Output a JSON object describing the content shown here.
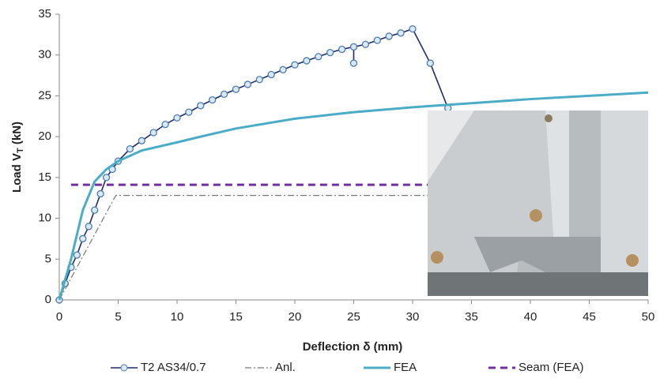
{
  "chart_data": {
    "type": "line",
    "xlabel": "Deflection δ (mm)",
    "ylabel": [
      "Load V",
      "T",
      " (kN)"
    ],
    "xlim": [
      0,
      50
    ],
    "xticks": [
      0,
      5,
      10,
      15,
      20,
      25,
      30,
      35,
      40,
      45,
      50
    ],
    "ylim": [
      0,
      35
    ],
    "yticks": [
      0,
      5,
      10,
      15,
      20,
      25,
      30,
      35
    ],
    "grid": false,
    "legend": "bottom",
    "series": [
      {
        "name": "T2 AS34/0.7",
        "color": "#1f2a6e",
        "style": "solid",
        "marker": "circle",
        "x": [
          0,
          0.5,
          1,
          1.5,
          2,
          2.5,
          3,
          3.5,
          4,
          4.5,
          5,
          6,
          7,
          8,
          9,
          10,
          11,
          12,
          13,
          14,
          15,
          16,
          17,
          18,
          19,
          20,
          21,
          22,
          23,
          24,
          25,
          25,
          25,
          26,
          27,
          28,
          29,
          30,
          31.5,
          33
        ],
        "values": [
          0,
          2,
          4,
          5.5,
          7.5,
          9,
          11,
          13,
          15,
          16,
          17,
          18.5,
          19.5,
          20.5,
          21.5,
          22.3,
          23,
          23.8,
          24.5,
          25.2,
          25.8,
          26.4,
          27,
          27.6,
          28.2,
          28.8,
          29.3,
          29.8,
          30.3,
          30.7,
          31,
          29,
          31,
          31.3,
          31.8,
          32.3,
          32.7,
          33.2,
          29,
          23.5
        ]
      },
      {
        "name": "Anl.",
        "color": "#777777",
        "style": "dash-dot",
        "marker": "none",
        "x": [
          0,
          4.8,
          31.5
        ],
        "values": [
          0,
          12.8,
          12.8
        ]
      },
      {
        "name": "FEA",
        "color": "#4bacc6",
        "style": "solid-thick",
        "marker": "none",
        "x": [
          0,
          1,
          2,
          3,
          4,
          5,
          7,
          10,
          12,
          15,
          20,
          25,
          30,
          35,
          40,
          45,
          50
        ],
        "values": [
          0,
          5,
          11,
          14.5,
          16,
          17,
          18.3,
          19.3,
          20,
          21,
          22.2,
          23,
          23.6,
          24.1,
          24.6,
          25,
          25.4
        ]
      },
      {
        "name": "Seam (FEA)",
        "color": "#7030a0",
        "style": "dashed",
        "marker": "none",
        "x": [
          1,
          31.5
        ],
        "values": [
          14.1,
          14.1
        ]
      }
    ]
  }
}
